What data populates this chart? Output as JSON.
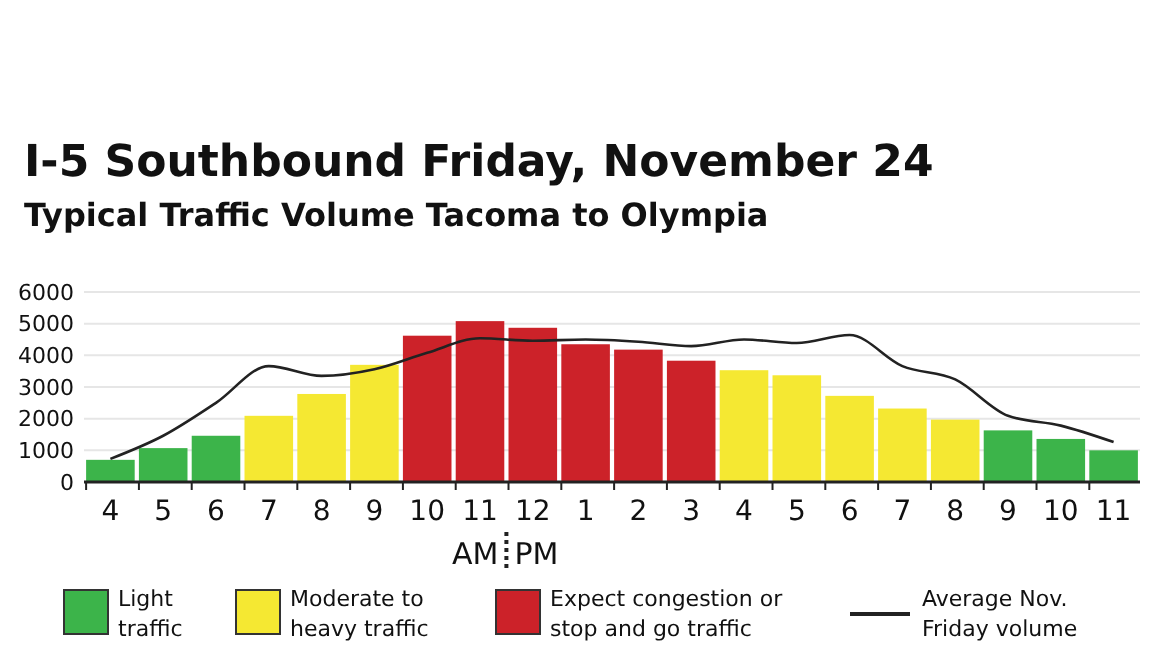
{
  "chart_data": {
    "type": "bar",
    "title": "I-5 Southbound Friday, November 24",
    "subtitle": "Typical Traffic Volume Tacoma to Olympia",
    "categories": [
      "4",
      "5",
      "6",
      "7",
      "8",
      "9",
      "10",
      "11",
      "12",
      "1",
      "2",
      "3",
      "4",
      "5",
      "6",
      "7",
      "8",
      "9",
      "10",
      "11"
    ],
    "stacked": true,
    "series": [
      {
        "name": "Light traffic",
        "color": "#3cb44a",
        "values": [
          700,
          1070,
          1460,
          null,
          null,
          null,
          null,
          null,
          null,
          null,
          null,
          null,
          null,
          null,
          null,
          null,
          null,
          1630,
          1360,
          1000
        ]
      },
      {
        "name": "Moderate to heavy traffic",
        "color": "#f5e832",
        "values": [
          null,
          null,
          null,
          2090,
          2780,
          3700,
          null,
          null,
          null,
          null,
          null,
          null,
          3530,
          3370,
          2720,
          2320,
          1970,
          null,
          null,
          null
        ]
      },
      {
        "name": "Expect congestion or stop and go traffic",
        "color": "#cc2229",
        "values": [
          null,
          null,
          null,
          null,
          null,
          null,
          4620,
          5080,
          4870,
          4350,
          4180,
          3830,
          null,
          null,
          null,
          null,
          null,
          null,
          null,
          null
        ]
      },
      {
        "name": "Average Nov. Friday volume",
        "type": "line",
        "color": "#222222",
        "values": [
          730,
          1460,
          2500,
          3660,
          3350,
          3560,
          4080,
          4540,
          4460,
          4500,
          4430,
          4290,
          4500,
          4390,
          4640,
          3660,
          3240,
          2090,
          1780,
          1260
        ]
      }
    ],
    "ylim": [
      0,
      6000
    ],
    "yticks": [
      0,
      1000,
      2000,
      3000,
      4000,
      5000,
      6000
    ],
    "grid": "y",
    "legend": "bottom",
    "marker": "none",
    "annotations": [
      "AM",
      "PM"
    ]
  }
}
